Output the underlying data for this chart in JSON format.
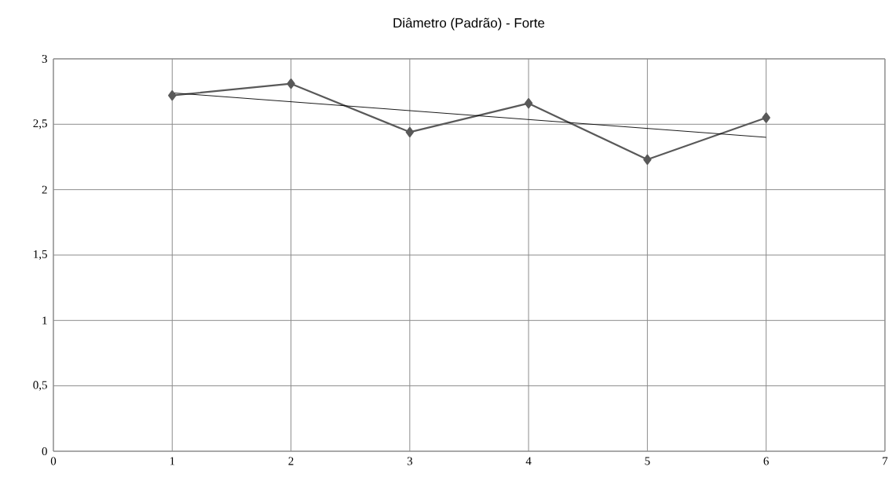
{
  "chart_data": {
    "type": "line",
    "title": "Diâmetro (Padrão) - Forte",
    "x": [
      1,
      2,
      3,
      4,
      5,
      6
    ],
    "series": [
      {
        "color": "#595959",
        "marker": "diamond",
        "values": [
          2.72,
          2.81,
          2.44,
          2.66,
          2.23,
          2.55
        ]
      },
      {
        "type": "line",
        "color": "#000000",
        "marker": "none",
        "x": [
          1,
          6
        ],
        "values": [
          2.74,
          2.4
        ]
      }
    ],
    "xlim": [
      0,
      7
    ],
    "xticks": [
      0,
      1,
      2,
      3,
      4,
      5,
      6,
      7
    ],
    "ylim": [
      0,
      3
    ],
    "yticks": [
      0,
      {
        "value": 0.5,
        "label": "0,5"
      },
      1,
      {
        "value": 1.5,
        "label": "1,5"
      },
      2,
      {
        "value": 2.5,
        "label": "2,5"
      },
      3
    ],
    "grid": true
  }
}
